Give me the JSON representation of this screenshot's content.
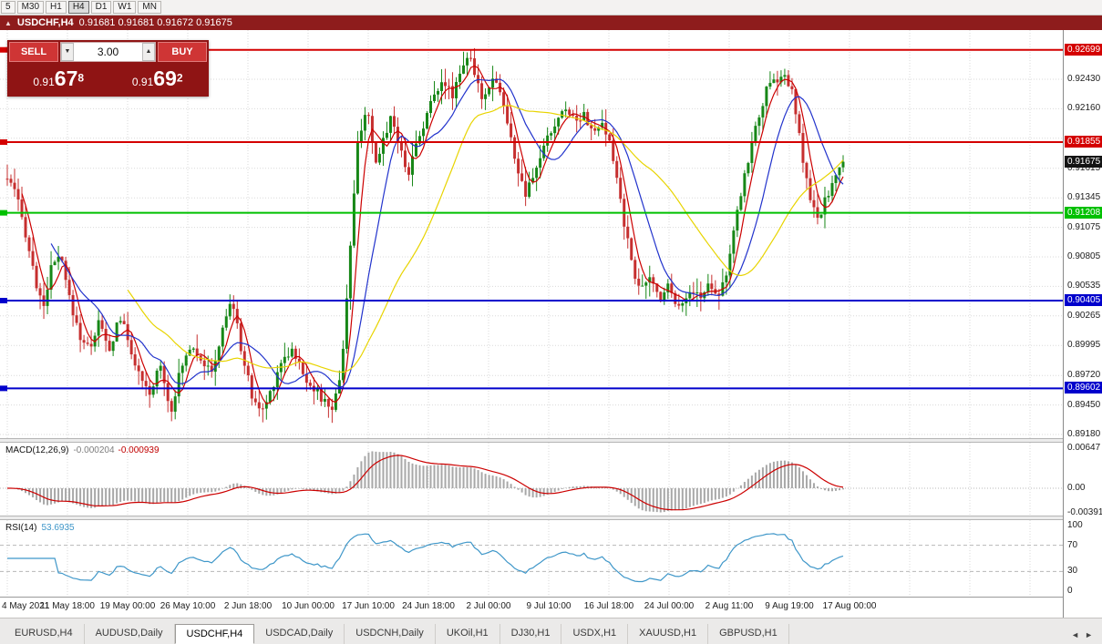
{
  "toolbar": {
    "periods": [
      "5",
      "M30",
      "H1",
      "H4",
      "D1",
      "W1",
      "MN"
    ],
    "active_period": "H4"
  },
  "title_bar": {
    "symbol": "USDCHF,H4",
    "ohlc": "0.91681 0.91681 0.91672 0.91675"
  },
  "trade_panel": {
    "sell_label": "SELL",
    "buy_label": "BUY",
    "volume": "3.00",
    "sell_price": {
      "prefix": "0.91",
      "big": "67",
      "sup": "8"
    },
    "buy_price": {
      "prefix": "0.91",
      "big": "69",
      "sup": "2"
    }
  },
  "chart": {
    "symbol": "USDCHF",
    "timeframe": "H4",
    "candle_up_color": "#178717",
    "candle_down_color": "#c62f2f",
    "grid_labels": [
      {
        "text": "0.92430",
        "price": 0.9243
      },
      {
        "text": "0.92160",
        "price": 0.9216
      },
      {
        "text": "0.91615",
        "price": 0.91615
      },
      {
        "text": "0.91345",
        "price": 0.91345
      },
      {
        "text": "0.91075",
        "price": 0.91075
      },
      {
        "text": "0.90805",
        "price": 0.90805
      },
      {
        "text": "0.90535",
        "price": 0.90535
      },
      {
        "text": "0.90265",
        "price": 0.90265
      },
      {
        "text": "0.89995",
        "price": 0.89995
      },
      {
        "text": "0.89720",
        "price": 0.8972
      },
      {
        "text": "0.89450",
        "price": 0.8945
      },
      {
        "text": "0.89180",
        "price": 0.8918
      }
    ],
    "grid_extra_prices": [
      0.9189
    ],
    "hlines": [
      {
        "label": "0.92699",
        "price": 0.92699,
        "color": "#d40000"
      },
      {
        "label": "0.91855",
        "price": 0.91855,
        "color": "#d40000"
      },
      {
        "label": "0.91208",
        "price": 0.91208,
        "color": "#00c000"
      },
      {
        "label": "0.90405",
        "price": 0.90405,
        "color": "#0000cc"
      },
      {
        "label": "0.89602",
        "price": 0.89602,
        "color": "#0000cc"
      }
    ],
    "current_price": {
      "label": "0.91675",
      "price": 0.91675,
      "color": "#141414"
    },
    "time_labels": [
      "4 May 2021",
      "11 May 18:00",
      "19 May 00:00",
      "26 May 10:00",
      "2 Jun 18:00",
      "10 Jun 00:00",
      "17 Jun 10:00",
      "24 Jun 18:00",
      "2 Jul 00:00",
      "9 Jul 10:00",
      "16 Jul 18:00",
      "24 Jul 00:00",
      "2 Aug 11:00",
      "9 Aug 19:00",
      "17 Aug 00:00"
    ],
    "ma_lines": [
      {
        "period": 5,
        "color": "#cc0000"
      },
      {
        "period": 13,
        "color": "#2233cc"
      },
      {
        "period": 34,
        "color": "#e8d400"
      }
    ],
    "anchors": [
      [
        0.0,
        0.9152
      ],
      [
        0.01,
        0.9138
      ],
      [
        0.022,
        0.9102
      ],
      [
        0.034,
        0.9058
      ],
      [
        0.042,
        0.9032
      ],
      [
        0.052,
        0.9068
      ],
      [
        0.063,
        0.9082
      ],
      [
        0.075,
        0.904
      ],
      [
        0.087,
        0.9008
      ],
      [
        0.098,
        0.8996
      ],
      [
        0.11,
        0.9022
      ],
      [
        0.122,
        0.8992
      ],
      [
        0.134,
        0.9028
      ],
      [
        0.147,
        0.8998
      ],
      [
        0.159,
        0.8968
      ],
      [
        0.171,
        0.8952
      ],
      [
        0.183,
        0.8986
      ],
      [
        0.195,
        0.8938
      ],
      [
        0.207,
        0.8976
      ],
      [
        0.22,
        0.9002
      ],
      [
        0.232,
        0.8988
      ],
      [
        0.244,
        0.8972
      ],
      [
        0.256,
        0.9008
      ],
      [
        0.268,
        0.9044
      ],
      [
        0.281,
        0.8992
      ],
      [
        0.293,
        0.8952
      ],
      [
        0.305,
        0.8938
      ],
      [
        0.317,
        0.8962
      ],
      [
        0.329,
        0.8988
      ],
      [
        0.342,
        0.8996
      ],
      [
        0.354,
        0.8972
      ],
      [
        0.366,
        0.8962
      ],
      [
        0.378,
        0.8948
      ],
      [
        0.39,
        0.8942
      ],
      [
        0.4,
        0.898
      ],
      [
        0.41,
        0.9085
      ],
      [
        0.42,
        0.919
      ],
      [
        0.43,
        0.9218
      ],
      [
        0.44,
        0.9162
      ],
      [
        0.45,
        0.9188
      ],
      [
        0.46,
        0.9212
      ],
      [
        0.47,
        0.9178
      ],
      [
        0.48,
        0.9158
      ],
      [
        0.49,
        0.9186
      ],
      [
        0.5,
        0.9206
      ],
      [
        0.51,
        0.9228
      ],
      [
        0.52,
        0.9244
      ],
      [
        0.532,
        0.9228
      ],
      [
        0.544,
        0.9256
      ],
      [
        0.552,
        0.9266
      ],
      [
        0.56,
        0.9242
      ],
      [
        0.57,
        0.9224
      ],
      [
        0.58,
        0.9248
      ],
      [
        0.59,
        0.9232
      ],
      [
        0.6,
        0.9196
      ],
      [
        0.61,
        0.9162
      ],
      [
        0.62,
        0.9136
      ],
      [
        0.63,
        0.9154
      ],
      [
        0.64,
        0.9178
      ],
      [
        0.65,
        0.9194
      ],
      [
        0.66,
        0.9208
      ],
      [
        0.67,
        0.9218
      ],
      [
        0.68,
        0.9204
      ],
      [
        0.69,
        0.9214
      ],
      [
        0.7,
        0.9192
      ],
      [
        0.71,
        0.9202
      ],
      [
        0.72,
        0.9186
      ],
      [
        0.73,
        0.915
      ],
      [
        0.74,
        0.9102
      ],
      [
        0.75,
        0.9066
      ],
      [
        0.76,
        0.905
      ],
      [
        0.77,
        0.9062
      ],
      [
        0.78,
        0.9042
      ],
      [
        0.79,
        0.9056
      ],
      [
        0.8,
        0.904
      ],
      [
        0.81,
        0.9038
      ],
      [
        0.82,
        0.9052
      ],
      [
        0.83,
        0.9042
      ],
      [
        0.84,
        0.9058
      ],
      [
        0.85,
        0.9046
      ],
      [
        0.86,
        0.9064
      ],
      [
        0.87,
        0.9105
      ],
      [
        0.88,
        0.9148
      ],
      [
        0.89,
        0.9182
      ],
      [
        0.9,
        0.9212
      ],
      [
        0.91,
        0.9236
      ],
      [
        0.92,
        0.9242
      ],
      [
        0.93,
        0.9246
      ],
      [
        0.94,
        0.9228
      ],
      [
        0.95,
        0.9178
      ],
      [
        0.96,
        0.9134
      ],
      [
        0.97,
        0.9112
      ],
      [
        0.98,
        0.9136
      ],
      [
        0.99,
        0.9152
      ],
      [
        1.0,
        0.9167
      ]
    ]
  },
  "macd_panel": {
    "label": "MACD(12,26,9)",
    "value_main": "-0.000204",
    "value_signal": "-0.000939",
    "axis_labels": [
      {
        "text": "0.00647",
        "value": 0.00647
      },
      {
        "text": "0.00",
        "value": 0
      },
      {
        "text": "-0.00391",
        "value": -0.00391
      }
    ],
    "hist_color": "#a8a8a8",
    "signal_color": "#cc0000"
  },
  "rsi_panel": {
    "label": "RSI(14)",
    "value": "53.6935",
    "axis_labels": [
      {
        "text": "100",
        "value": 100
      },
      {
        "text": "70",
        "value": 70
      },
      {
        "text": "30",
        "value": 30
      },
      {
        "text": "0",
        "value": 0
      }
    ],
    "levels": [
      70,
      30
    ],
    "line_color": "#3f97c9"
  },
  "tab_bar": {
    "tabs": [
      "EURUSD,H4",
      "AUDUSD,Daily",
      "USDCHF,H4",
      "USDCAD,Daily",
      "USDCNH,Daily",
      "UKOil,H1",
      "DJ30,H1",
      "USDX,H1",
      "XAUUSD,H1",
      "GBPUSD,H1"
    ],
    "active_tab": "USDCHF,H4",
    "scroll_left_icon": "◄",
    "scroll_right_icon": "►"
  }
}
